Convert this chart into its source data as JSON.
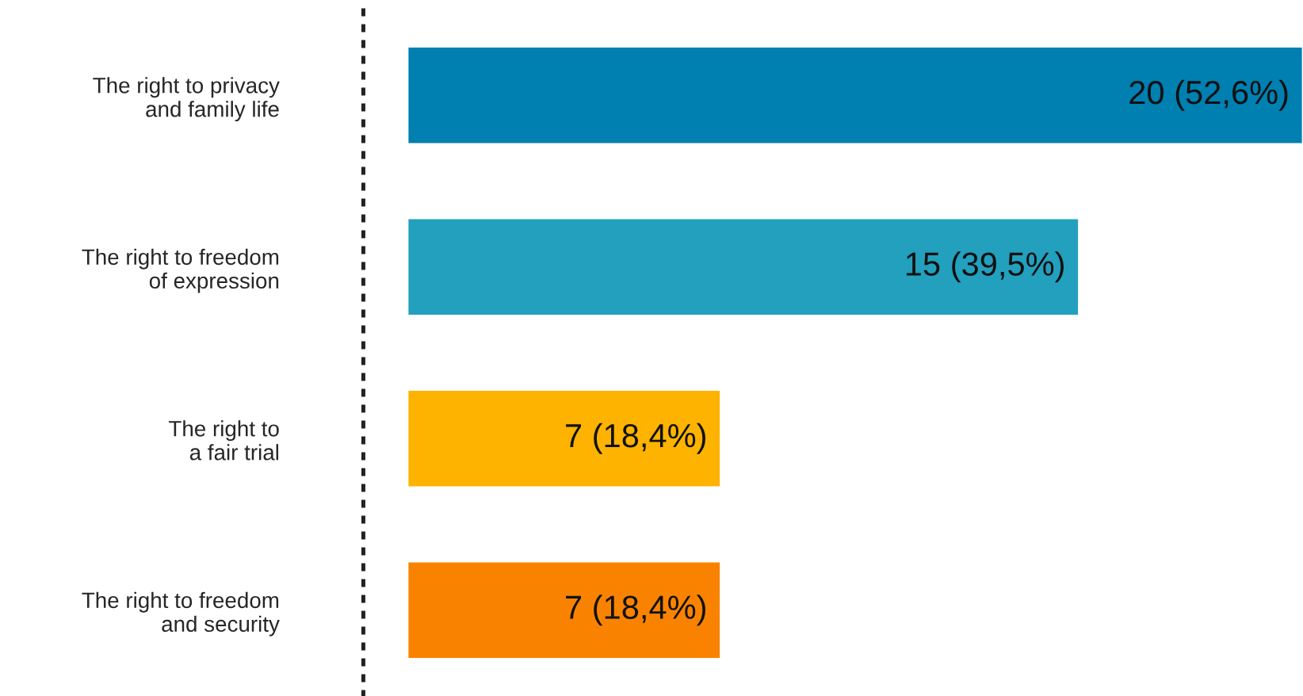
{
  "chart_data": {
    "type": "bar",
    "orientation": "horizontal",
    "categories": [
      "The right to privacy\nand family life",
      "The right to freedom\nof expression",
      "The right to\na fair trial",
      "The right to freedom\nand security"
    ],
    "values": [
      20,
      15,
      7,
      7
    ],
    "colors": [
      "#007fb1",
      "#22a0be",
      "#fdb300",
      "#f98300"
    ],
    "value_labels": [
      "20 (52,6%)",
      "15 (39,5%)",
      "7 (18,4%)",
      "7 (18,4%)"
    ],
    "grid": false,
    "legend": false
  }
}
